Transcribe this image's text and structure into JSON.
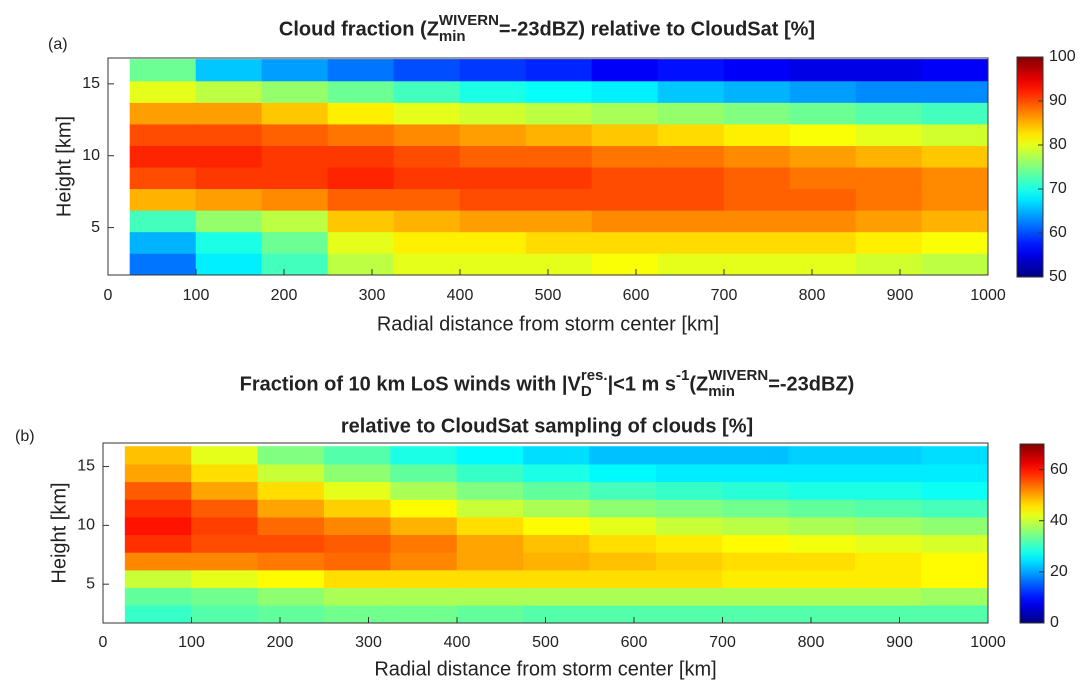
{
  "chart_data": [
    {
      "type": "heatmap",
      "panel_label": "(a)",
      "title": [
        [
          {
            "text": "Cloud fraction (Z"
          },
          {
            "text": "WIVERN",
            "style": "sup"
          },
          {
            "text": "min",
            "style": "sub"
          },
          {
            "text": "=-23dBZ) relative to CloudSat [%]"
          }
        ]
      ],
      "xlabel": "Radial distance from storm center [km]",
      "ylabel": "Height [km]",
      "xlim": [
        0,
        1000
      ],
      "xticks": [
        0,
        100,
        200,
        300,
        400,
        500,
        600,
        700,
        800,
        900,
        1000
      ],
      "ylim": [
        1.7,
        16.8
      ],
      "yticks": [
        5,
        10,
        15
      ],
      "x_bins": [
        25,
        100,
        175,
        250,
        325,
        400,
        475,
        550,
        625,
        700,
        775,
        850,
        925,
        1000
      ],
      "y_bins": [
        1.7,
        3.2,
        4.7,
        6.2,
        7.7,
        9.2,
        10.7,
        12.2,
        13.7,
        15.2,
        16.7
      ],
      "values": [
        [
          62,
          65,
          72,
          85,
          90,
          92,
          90,
          86,
          80,
          74
        ],
        [
          68,
          70,
          76,
          86,
          91,
          92,
          90,
          86,
          78,
          66
        ],
        [
          72,
          74,
          78,
          87,
          91,
          91,
          89,
          84,
          76,
          64
        ],
        [
          78,
          80,
          84,
          89,
          92,
          91,
          88,
          82,
          74,
          62
        ],
        [
          80,
          82,
          85,
          89,
          91,
          90,
          87,
          80,
          72,
          60
        ],
        [
          80,
          82,
          86,
          90,
          91,
          89,
          86,
          79,
          70,
          59
        ],
        [
          80,
          83,
          86,
          90,
          91,
          89,
          85,
          78,
          69,
          58
        ],
        [
          81,
          83,
          87,
          90,
          90,
          88,
          84,
          77,
          68,
          56
        ],
        [
          80,
          83,
          87,
          90,
          90,
          88,
          83,
          76,
          66,
          57
        ],
        [
          80,
          83,
          87,
          89,
          89,
          87,
          82,
          75,
          65,
          56
        ],
        [
          80,
          83,
          87,
          89,
          88,
          86,
          81,
          74,
          64,
          55
        ],
        [
          79,
          82,
          86,
          88,
          88,
          85,
          80,
          73,
          63,
          55
        ],
        [
          78,
          81,
          85,
          87,
          87,
          84,
          79,
          72,
          63,
          56
        ]
      ],
      "colormap": "jet",
      "clim": [
        50,
        100
      ],
      "cticks": [
        50,
        60,
        70,
        80,
        90,
        100
      ]
    },
    {
      "type": "heatmap",
      "panel_label": "(b)",
      "title": [
        [
          {
            "text": "Fraction of 10 km LoS winds with |V"
          },
          {
            "text": "res.",
            "style": "sup"
          },
          {
            "text": "D",
            "style": "sub"
          },
          {
            "text": "|<1 m s"
          },
          {
            "text": "-1",
            "style": "sup"
          },
          {
            "text": " (Z"
          },
          {
            "text": "WIVERN",
            "style": "sup"
          },
          {
            "text": "min",
            "style": "sub"
          },
          {
            "text": "=-23dBZ)"
          }
        ],
        [
          {
            "text": "relative to CloudSat sampling of clouds [%]"
          }
        ]
      ],
      "xlabel": "Radial distance from storm center [km]",
      "ylabel": "Height [km]",
      "xlim": [
        0,
        1000
      ],
      "xticks": [
        0,
        100,
        200,
        300,
        400,
        500,
        600,
        700,
        800,
        900,
        1000
      ],
      "ylim": [
        1.7,
        17
      ],
      "yticks": [
        5,
        10,
        15
      ],
      "x_bins": [
        25,
        100,
        175,
        250,
        325,
        400,
        475,
        550,
        625,
        700,
        775,
        850,
        925,
        1000
      ],
      "y_bins": [
        1.7,
        3.2,
        4.7,
        6.2,
        7.7,
        9.2,
        10.7,
        12.2,
        13.7,
        15.2,
        16.7
      ],
      "values": [
        [
          30,
          33,
          40,
          52,
          58,
          60,
          58,
          55,
          50,
          48
        ],
        [
          32,
          34,
          42,
          52,
          56,
          57,
          55,
          50,
          46,
          42
        ],
        [
          33,
          36,
          44,
          53,
          56,
          54,
          50,
          46,
          40,
          35
        ],
        [
          34,
          38,
          46,
          54,
          55,
          52,
          47,
          42,
          36,
          32
        ],
        [
          34,
          38,
          46,
          52,
          53,
          49,
          44,
          38,
          33,
          28
        ],
        [
          33,
          38,
          46,
          50,
          50,
          46,
          40,
          35,
          30,
          26
        ],
        [
          32,
          38,
          46,
          49,
          48,
          44,
          38,
          33,
          28,
          24
        ],
        [
          32,
          38,
          46,
          48,
          46,
          42,
          36,
          31,
          26,
          22
        ],
        [
          32,
          38,
          46,
          47,
          45,
          40,
          35,
          30,
          25,
          22
        ],
        [
          32,
          38,
          45,
          46,
          44,
          39,
          34,
          29,
          25,
          22
        ],
        [
          32,
          38,
          45,
          46,
          43,
          38,
          33,
          28,
          25,
          23
        ],
        [
          32,
          38,
          45,
          45,
          42,
          37,
          32,
          28,
          25,
          23
        ],
        [
          32,
          37,
          44,
          44,
          41,
          36,
          31,
          27,
          25,
          24
        ]
      ],
      "colormap": "jet",
      "clim": [
        0,
        70
      ],
      "cticks": [
        0,
        20,
        40,
        60
      ]
    }
  ]
}
